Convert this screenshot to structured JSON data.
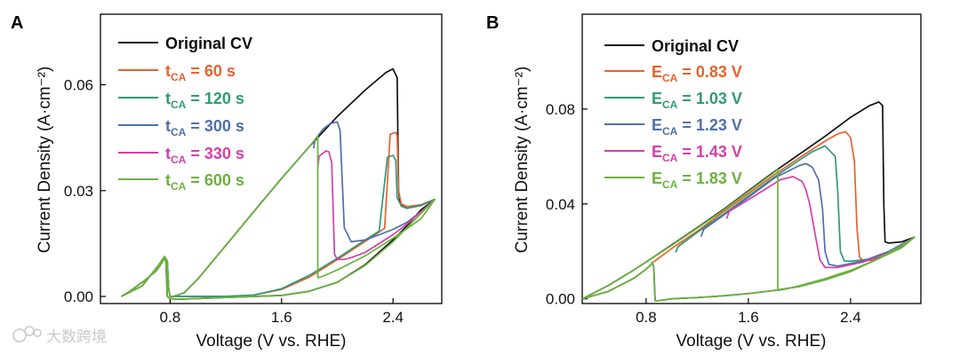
{
  "watermark": "大数跨境",
  "chart_data": [
    {
      "type": "line",
      "panel": "A",
      "xlabel": "Voltage (V vs. RHE)",
      "ylabel": "Current Density (A·cm⁻²)",
      "xlim": [
        0.3,
        2.75
      ],
      "ylim": [
        -0.002,
        0.08
      ],
      "xticks": [
        0.8,
        1.6,
        2.4
      ],
      "xtick_labels": [
        "0.8",
        "1.6",
        "2.4"
      ],
      "yticks": [
        0.0,
        0.03,
        0.06
      ],
      "ytick_labels": [
        "0.00",
        "0.03",
        "0.06"
      ],
      "legend": "top-left",
      "series": [
        {
          "name": "Original CV",
          "main": "Original CV",
          "sub": "",
          "rest": "",
          "color": "#111111",
          "x": [
            0.45,
            0.6,
            0.72,
            0.76,
            0.78,
            0.79,
            0.8,
            0.82,
            0.9,
            1.0,
            1.2,
            1.4,
            1.6,
            1.8,
            2.0,
            2.2,
            2.35,
            2.4,
            2.43,
            2.44,
            2.45,
            2.47,
            2.5,
            2.6,
            2.7,
            2.6,
            2.5,
            2.4,
            2.2,
            2.0,
            1.8,
            1.6,
            1.4,
            1.2,
            1.0,
            0.85,
            0.8,
            0.78,
            0.77,
            0.76,
            0.74,
            0.7,
            0.6,
            0.5,
            0.45
          ],
          "y": [
            0.0,
            0.003,
            0.009,
            0.0113,
            0.01,
            0.002,
            0.0,
            0.0,
            0.001,
            0.005,
            0.0145,
            0.024,
            0.0335,
            0.0425,
            0.051,
            0.0585,
            0.0635,
            0.0645,
            0.062,
            0.03,
            0.0265,
            0.0255,
            0.025,
            0.0258,
            0.0275,
            0.0245,
            0.02,
            0.016,
            0.009,
            0.004,
            0.0015,
            0.0003,
            0.0,
            -0.0003,
            -0.0006,
            -0.0008,
            -0.0006,
            0.0,
            0.0095,
            0.011,
            0.0095,
            0.0072,
            0.004,
            0.0012,
            0.0
          ]
        },
        {
          "name": "tCA = 60 s",
          "main": "t",
          "sub": "CA",
          "rest": " = 60 s",
          "color": "#e8622c",
          "x": [
            0.45,
            0.6,
            0.72,
            0.76,
            0.78,
            0.79,
            0.8,
            0.82,
            0.9,
            1.0,
            1.2,
            1.4,
            1.6,
            1.8,
            2.0,
            2.2,
            2.34,
            2.38,
            2.42,
            2.43,
            2.44,
            2.46,
            2.5,
            2.6,
            2.7
          ],
          "y": [
            0.0,
            0.003,
            0.009,
            0.0113,
            0.01,
            0.002,
            0.0,
            0.0,
            0.0,
            0.0,
            0.0,
            0.0004,
            0.002,
            0.0055,
            0.0104,
            0.0156,
            0.0193,
            0.046,
            0.0465,
            0.0455,
            0.03,
            0.0262,
            0.0255,
            0.026,
            0.0275
          ]
        },
        {
          "name": "tCA = 120 s",
          "main": "t",
          "sub": "CA",
          "rest": " = 120 s",
          "color": "#2f9a78",
          "x": [
            0.45,
            0.6,
            0.72,
            0.76,
            0.78,
            0.79,
            0.8,
            0.82,
            0.9,
            1.0,
            1.2,
            1.4,
            1.6,
            1.8,
            2.0,
            2.2,
            2.3,
            2.36,
            2.4,
            2.42,
            2.43,
            2.46,
            2.5,
            2.6,
            2.7
          ],
          "y": [
            0.0,
            0.003,
            0.009,
            0.0113,
            0.01,
            0.002,
            0.0,
            0.0,
            0.0,
            0.0,
            0.0,
            0.0004,
            0.0022,
            0.006,
            0.0108,
            0.016,
            0.0185,
            0.0395,
            0.04,
            0.0385,
            0.028,
            0.0256,
            0.025,
            0.0258,
            0.0275
          ]
        },
        {
          "name": "tCA = 300 s",
          "main": "t",
          "sub": "CA",
          "rest": " = 300 s",
          "color": "#4e6fae",
          "x": [
            1.83,
            1.84,
            1.9,
            1.95,
            2.0,
            2.02,
            2.05,
            2.1,
            2.2,
            2.3,
            2.4,
            2.5,
            2.6,
            2.7
          ],
          "y": [
            0.042,
            0.0445,
            0.0475,
            0.049,
            0.0495,
            0.047,
            0.0195,
            0.0155,
            0.016,
            0.0175,
            0.019,
            0.021,
            0.024,
            0.0275
          ]
        },
        {
          "name": "tCA = 330 s",
          "main": "t",
          "sub": "CA",
          "rest": " = 330 s",
          "color": "#d63ea8",
          "x": [
            1.86,
            1.87,
            1.92,
            1.94,
            1.96,
            1.98,
            2.0,
            2.05,
            2.1,
            2.2,
            2.3,
            2.4,
            2.5,
            2.6,
            2.7
          ],
          "y": [
            0.0366,
            0.0398,
            0.0413,
            0.041,
            0.038,
            0.012,
            0.0105,
            0.0105,
            0.011,
            0.0125,
            0.015,
            0.0175,
            0.0205,
            0.024,
            0.0275
          ]
        },
        {
          "name": "tCA = 600 s",
          "main": "t",
          "sub": "CA",
          "rest": " = 600 s",
          "color": "#6ab23e",
          "x": [
            0.45,
            0.6,
            0.72,
            0.76,
            0.78,
            0.79,
            0.8,
            0.82,
            0.9,
            1.0,
            1.2,
            1.4,
            1.6,
            1.8,
            1.86,
            1.86,
            1.9,
            2.0,
            2.2,
            2.4,
            2.6,
            2.7,
            2.6,
            2.4,
            2.2,
            2.0,
            1.8,
            1.6,
            1.4,
            1.2,
            1.0,
            0.85,
            0.8,
            0.78,
            0.77,
            0.76,
            0.74,
            0.7,
            0.6,
            0.5,
            0.45
          ],
          "y": [
            0.0,
            0.003,
            0.009,
            0.0113,
            0.01,
            0.002,
            0.0,
            0.0,
            0.001,
            0.005,
            0.0145,
            0.024,
            0.0335,
            0.0425,
            0.0455,
            0.0053,
            0.0058,
            0.0075,
            0.0115,
            0.0165,
            0.022,
            0.0275,
            0.0235,
            0.0155,
            0.0088,
            0.004,
            0.0015,
            0.0003,
            0.0,
            -0.0003,
            -0.0006,
            -0.0008,
            -0.0006,
            0.0,
            0.0095,
            0.011,
            0.0095,
            0.0072,
            0.004,
            0.0012,
            0.0
          ]
        }
      ]
    },
    {
      "type": "line",
      "panel": "B",
      "xlabel": "Voltage (V vs. RHE)",
      "ylabel": "Current Density (A·cm⁻²)",
      "xlim": [
        0.3,
        2.95
      ],
      "ylim": [
        -0.002,
        0.12
      ],
      "xticks": [
        0.8,
        1.6,
        2.4
      ],
      "xtick_labels": [
        "0.8",
        "1.6",
        "2.4"
      ],
      "yticks": [
        0.0,
        0.04,
        0.08
      ],
      "ytick_labels": [
        "0.00",
        "0.04",
        "0.08"
      ],
      "legend": "top-left",
      "series": [
        {
          "name": "Original CV",
          "main": "Original CV",
          "sub": "",
          "rest": "",
          "color": "#111111",
          "x": [
            0.3,
            0.5,
            0.7,
            0.8,
            1.0,
            1.2,
            1.4,
            1.6,
            1.8,
            2.0,
            2.2,
            2.4,
            2.55,
            2.62,
            2.65,
            2.66,
            2.67,
            2.7,
            2.8,
            2.9,
            2.8,
            2.6,
            2.4,
            2.2,
            2.0,
            1.8,
            1.6,
            1.4,
            1.2,
            1.0,
            0.9,
            0.87,
            0.86,
            0.85,
            0.84,
            0.8,
            0.7,
            0.5,
            0.3
          ],
          "y": [
            0.0,
            0.0055,
            0.012,
            0.0155,
            0.0227,
            0.03,
            0.0375,
            0.0455,
            0.0535,
            0.061,
            0.0685,
            0.0765,
            0.0815,
            0.083,
            0.0815,
            0.04,
            0.024,
            0.0235,
            0.024,
            0.026,
            0.0225,
            0.0165,
            0.0115,
            0.008,
            0.0052,
            0.0035,
            0.0022,
            0.0012,
            0.0005,
            0.0,
            -0.0008,
            -0.0008,
            0.013,
            0.0155,
            0.0145,
            0.0125,
            0.0085,
            0.003,
            0.0
          ]
        },
        {
          "name": "ECA = 0.83 V",
          "main": "E",
          "sub": "CA",
          "rest": " = 0.83 V",
          "color": "#e8622c",
          "x": [
            0.86,
            0.9,
            1.0,
            1.2,
            1.4,
            1.6,
            1.8,
            2.0,
            2.2,
            2.3,
            2.36,
            2.4,
            2.43,
            2.45,
            2.47,
            2.5,
            2.6,
            2.7,
            2.8,
            2.9
          ],
          "y": [
            0.0155,
            0.0172,
            0.0212,
            0.0285,
            0.0365,
            0.0443,
            0.0522,
            0.0595,
            0.0665,
            0.0695,
            0.0705,
            0.068,
            0.058,
            0.03,
            0.0175,
            0.016,
            0.0165,
            0.019,
            0.0225,
            0.026
          ]
        },
        {
          "name": "ECA = 1.03 V",
          "main": "E",
          "sub": "CA",
          "rest": " = 1.03 V",
          "color": "#2f9a78",
          "x": [
            1.03,
            1.05,
            1.2,
            1.4,
            1.6,
            1.8,
            2.0,
            2.1,
            2.2,
            2.28,
            2.3,
            2.32,
            2.35,
            2.4,
            2.6,
            2.8,
            2.9
          ],
          "y": [
            0.0195,
            0.022,
            0.028,
            0.0355,
            0.0433,
            0.0512,
            0.0585,
            0.062,
            0.0645,
            0.06,
            0.045,
            0.02,
            0.016,
            0.0158,
            0.017,
            0.022,
            0.026
          ]
        },
        {
          "name": "ECA = 1.23 V",
          "main": "E",
          "sub": "CA",
          "rest": " = 1.23 V",
          "color": "#4e6fae",
          "x": [
            1.23,
            1.25,
            1.4,
            1.6,
            1.8,
            2.0,
            2.05,
            2.1,
            2.15,
            2.18,
            2.2,
            2.23,
            2.3,
            2.5,
            2.7,
            2.9
          ],
          "y": [
            0.0262,
            0.0293,
            0.035,
            0.0428,
            0.0508,
            0.0562,
            0.057,
            0.0555,
            0.05,
            0.038,
            0.02,
            0.0145,
            0.0138,
            0.016,
            0.02,
            0.026
          ]
        },
        {
          "name": "ECA = 1.43 V",
          "main": "E",
          "sub": "CA",
          "rest": " = 1.43 V",
          "color": "#d63ea8",
          "x": [
            1.43,
            1.45,
            1.6,
            1.75,
            1.85,
            1.95,
            2.02,
            2.05,
            2.08,
            2.1,
            2.13,
            2.16,
            2.2,
            2.3,
            2.5,
            2.7,
            2.9
          ],
          "y": [
            0.0338,
            0.0368,
            0.0418,
            0.0468,
            0.0502,
            0.0515,
            0.0495,
            0.046,
            0.04,
            0.034,
            0.025,
            0.0165,
            0.0132,
            0.0132,
            0.0155,
            0.0195,
            0.026
          ]
        },
        {
          "name": "ECA = 1.83 V",
          "main": "E",
          "sub": "CA",
          "rest": " = 1.83 V",
          "color": "#6ab23e",
          "x": [
            0.3,
            0.5,
            0.7,
            0.8,
            1.0,
            1.2,
            1.4,
            1.6,
            1.8,
            1.83,
            1.83,
            1.9,
            2.0,
            2.2,
            2.4,
            2.6,
            2.8,
            2.9,
            2.8,
            2.6,
            2.4,
            2.2,
            2.0,
            1.8,
            1.6,
            1.4,
            1.2,
            1.0,
            0.9,
            0.87,
            0.86,
            0.85,
            0.84,
            0.8,
            0.7,
            0.5,
            0.3
          ],
          "y": [
            0.0,
            0.0055,
            0.012,
            0.0155,
            0.0225,
            0.0298,
            0.0372,
            0.0452,
            0.0532,
            0.0545,
            0.0035,
            0.0042,
            0.0055,
            0.0085,
            0.012,
            0.0165,
            0.0215,
            0.026,
            0.0225,
            0.0165,
            0.0115,
            0.008,
            0.0052,
            0.0035,
            0.0022,
            0.0012,
            0.0005,
            0.0,
            -0.0008,
            -0.0008,
            0.013,
            0.0155,
            0.0145,
            0.0125,
            0.0085,
            0.003,
            0.0
          ]
        }
      ]
    }
  ]
}
